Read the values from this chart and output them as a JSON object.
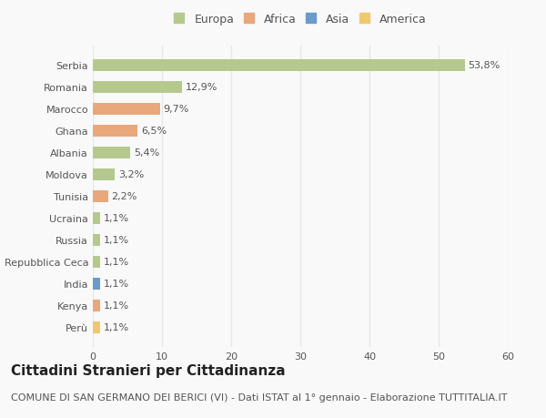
{
  "categories": [
    "Serbia",
    "Romania",
    "Marocco",
    "Ghana",
    "Albania",
    "Moldova",
    "Tunisia",
    "Ucraina",
    "Russia",
    "Repubblica Ceca",
    "India",
    "Kenya",
    "Perù"
  ],
  "values": [
    53.8,
    12.9,
    9.7,
    6.5,
    5.4,
    3.2,
    2.2,
    1.1,
    1.1,
    1.1,
    1.1,
    1.1,
    1.1
  ],
  "labels": [
    "53,8%",
    "12,9%",
    "9,7%",
    "6,5%",
    "5,4%",
    "3,2%",
    "2,2%",
    "1,1%",
    "1,1%",
    "1,1%",
    "1,1%",
    "1,1%",
    "1,1%"
  ],
  "colors": [
    "#b5c98e",
    "#b5c98e",
    "#e8a87c",
    "#e8a87c",
    "#b5c98e",
    "#b5c98e",
    "#e8a87c",
    "#b5c98e",
    "#b5c98e",
    "#b5c98e",
    "#6b9bc8",
    "#e8a87c",
    "#f0c96e"
  ],
  "legend": {
    "Europa": "#b5c98e",
    "Africa": "#e8a87c",
    "Asia": "#6b9bc8",
    "America": "#f0c96e"
  },
  "xlim": [
    0,
    60
  ],
  "xticks": [
    0,
    10,
    20,
    30,
    40,
    50,
    60
  ],
  "title": "Cittadini Stranieri per Cittadinanza",
  "subtitle": "COMUNE DI SAN GERMANO DEI BERICI (VI) - Dati ISTAT al 1° gennaio - Elaborazione TUTTITALIA.IT",
  "bg_color": "#f9f9f9",
  "grid_color": "#e8e8e8",
  "bar_height": 0.55,
  "title_fontsize": 11,
  "subtitle_fontsize": 8,
  "label_fontsize": 8,
  "tick_fontsize": 8,
  "legend_fontsize": 9
}
